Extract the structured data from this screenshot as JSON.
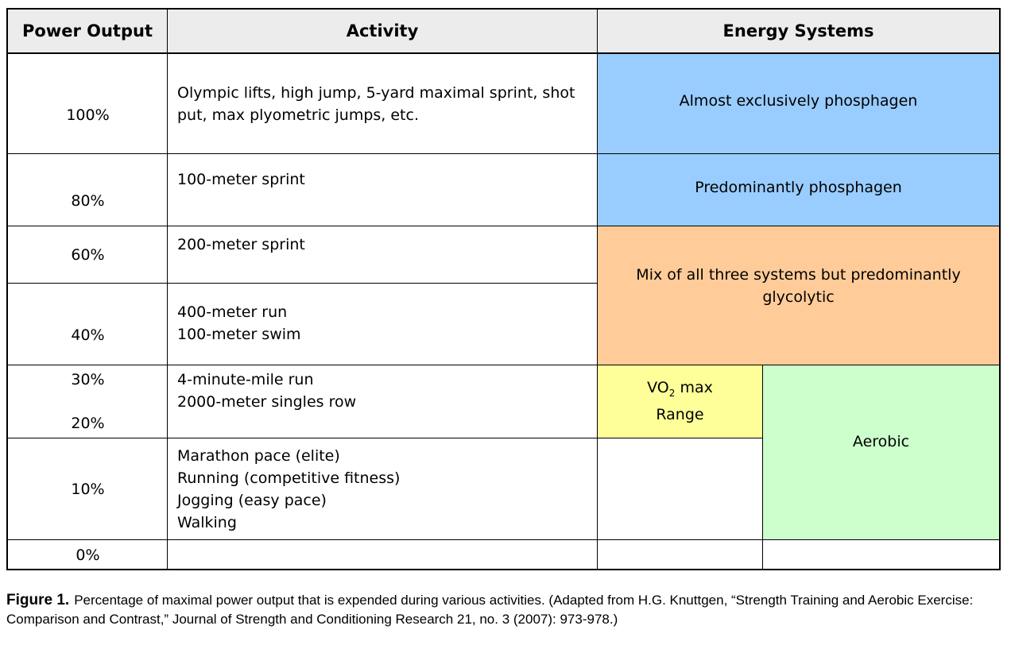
{
  "table": {
    "headers": {
      "power_output": "Power Output",
      "activity": "Activity",
      "energy_systems": "Energy Systems"
    },
    "power_labels": {
      "p100": "100%",
      "p80": "80%",
      "p60": "60%",
      "p40": "40%",
      "p30": "30%",
      "p20": "20%",
      "p10": "10%",
      "p0": "0%"
    },
    "activities": {
      "a100": "Olympic lifts, high jump, 5-yard maximal sprint, shot put, max plyometric jumps, etc.",
      "a80": "100-meter sprint",
      "a60": "200-meter sprint",
      "a40": "400-meter run\n100-meter swim",
      "a30": "4-minute-mile run\n2000-meter singles row",
      "a10": "Marathon pace (elite)\nRunning (competitive fitness)\nJogging (easy pace)\nWalking",
      "a0": ""
    },
    "energy": {
      "almost_phosphagen": "Almost exclusively phosphagen",
      "predominantly_phosphagen": "Predominantly phosphagen",
      "mix_glycolytic": "Mix of all three systems but predominantly glycolytic",
      "vo2_prefix": "VO",
      "vo2_sub": "2",
      "vo2_suffix": " max",
      "vo2_range": "Range",
      "aerobic": "Aerobic"
    },
    "colors": {
      "phosphagen": "#99ccff",
      "glycolytic": "#ffcc99",
      "vo2max": "#ffff99",
      "aerobic": "#ccffcc",
      "header": "#ececec"
    }
  },
  "caption": {
    "label": "Figure 1.",
    "text": "Percentage of maximal power output that is expended during various activities. (Adapted from H.G. Knuttgen, “Strength Training and Aerobic Exercise: Comparison and Contrast,” Journal of Strength and Conditioning Research 21, no. 3 (2007): 973-978.)"
  }
}
